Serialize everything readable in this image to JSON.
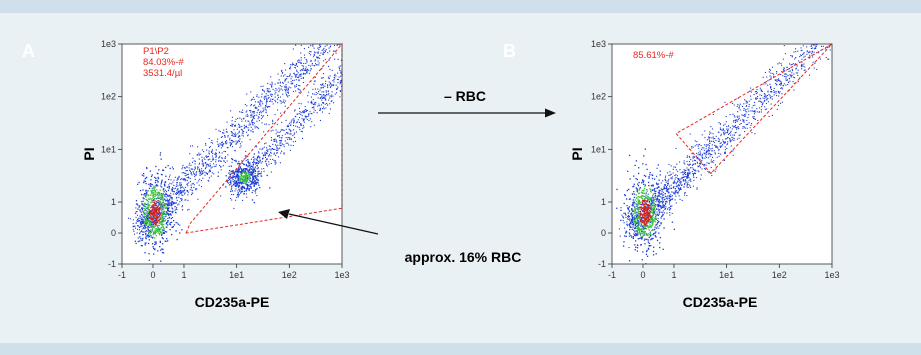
{
  "colors": {
    "panel_band": "#cfe0ea",
    "panel_bg": "#eaf1f5",
    "gate": "#e8271f",
    "gate_text": "#e8271f",
    "axis": "#333333",
    "event_blue": "#1a3bd6",
    "density_green": "#3cc23c",
    "density_red": "#d2261b",
    "panel_letter": "#ffffff"
  },
  "chart_data": [
    {
      "type": "scatter",
      "panel_label": "A",
      "xlabel": "CD235a-PE",
      "ylabel": "PI",
      "x_scale": "biexponential",
      "y_scale": "biexponential",
      "x_ticks": [
        "-1",
        "0",
        "1",
        "1e1",
        "1e2",
        "1e3"
      ],
      "y_ticks": [
        "-1",
        "0",
        "1",
        "1e1",
        "1e2",
        "1e3"
      ],
      "xlim": [
        -1,
        1000
      ],
      "ylim": [
        -1,
        1000
      ],
      "gate": {
        "name": "P1\\P2",
        "percent": "84.03%-#",
        "concentration": "3531.4/µl",
        "polygon": [
          [
            1.1,
            0
          ],
          [
            1.3,
            0.3
          ],
          [
            1000,
            1000
          ],
          [
            1000,
            0.8
          ]
        ]
      },
      "populations": [
        {
          "name": "",
          "center": [
            0.2,
            1.2
          ],
          "density": "high"
        },
        {
          "name": "RBC",
          "center": [
            14,
            1.8
          ],
          "density": "medium"
        }
      ]
    },
    {
      "type": "scatter",
      "panel_label": "B",
      "xlabel": "CD235a-PE",
      "ylabel": "PI",
      "x_scale": "biexponential",
      "y_scale": "biexponential",
      "x_ticks": [
        "-1",
        "0",
        "1",
        "1e1",
        "1e2",
        "1e3"
      ],
      "y_ticks": [
        "-1",
        "0",
        "1",
        "1e1",
        "1e2",
        "1e3"
      ],
      "xlim": [
        -1,
        1000
      ],
      "ylim": [
        -1,
        1000
      ],
      "gate": {
        "name": "",
        "percent": "85.61%-#",
        "concentration": "",
        "polygon": [
          [
            1.1,
            20
          ],
          [
            5,
            3.5
          ],
          [
            1000,
            1000
          ]
        ]
      },
      "populations": [
        {
          "name": "",
          "center": [
            0.2,
            1.2
          ],
          "density": "high"
        }
      ]
    }
  ],
  "annotations": {
    "transition_label": "– RBC",
    "rbc_note": "approx. 16% RBC"
  }
}
